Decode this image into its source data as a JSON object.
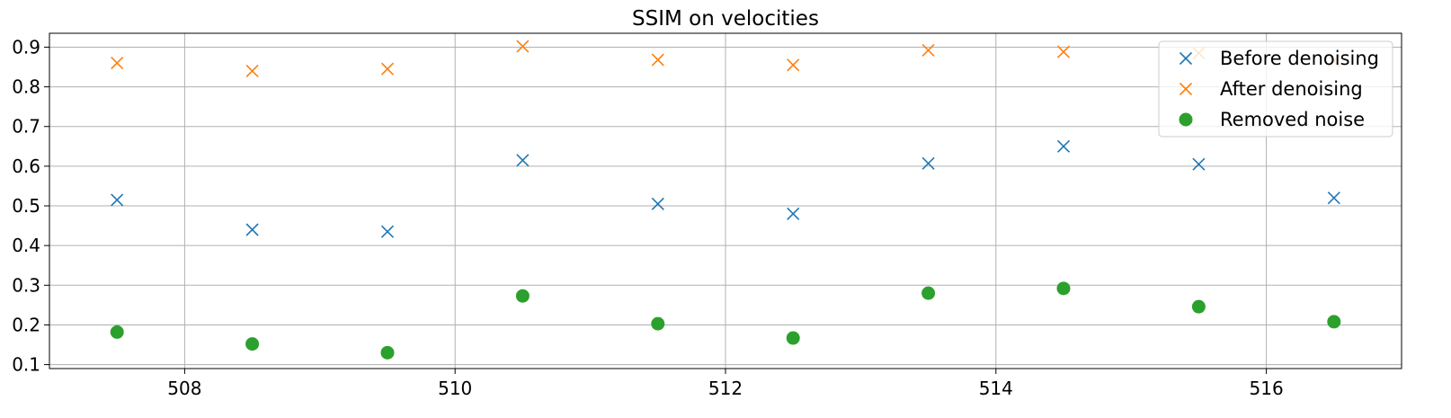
{
  "chart_data": {
    "type": "scatter",
    "title": "SSIM on velocities",
    "xlabel": "",
    "ylabel": "",
    "xlim": [
      507.0,
      517.0
    ],
    "ylim": [
      0.09,
      0.935
    ],
    "xticks": [
      508,
      510,
      512,
      514,
      516
    ],
    "xtick_labels": [
      "508",
      "510",
      "512",
      "514",
      "516"
    ],
    "yticks": [
      0.1,
      0.2,
      0.3,
      0.4,
      0.5,
      0.6,
      0.7,
      0.8,
      0.9
    ],
    "ytick_labels": [
      "0.1",
      "0.2",
      "0.3",
      "0.4",
      "0.5",
      "0.6",
      "0.7",
      "0.8",
      "0.9"
    ],
    "grid": true,
    "legend_position": "top-right",
    "x": [
      507.5,
      508.5,
      509.5,
      510.5,
      511.5,
      512.5,
      513.5,
      514.5,
      515.5,
      516.5
    ],
    "series": [
      {
        "name": "Before denoising",
        "marker": "x",
        "color": "#1f77b4",
        "values": [
          0.515,
          0.44,
          0.435,
          0.615,
          0.505,
          0.48,
          0.607,
          0.65,
          0.605,
          0.52
        ]
      },
      {
        "name": "After denoising",
        "marker": "x",
        "color": "#ff7f0e",
        "values": [
          0.86,
          0.84,
          0.845,
          0.902,
          0.868,
          0.855,
          0.892,
          0.888,
          0.885,
          0.865
        ]
      },
      {
        "name": "Removed noise",
        "marker": "o",
        "color": "#2ca02c",
        "values": [
          0.182,
          0.152,
          0.13,
          0.273,
          0.203,
          0.167,
          0.28,
          0.292,
          0.246,
          0.208
        ]
      }
    ]
  }
}
